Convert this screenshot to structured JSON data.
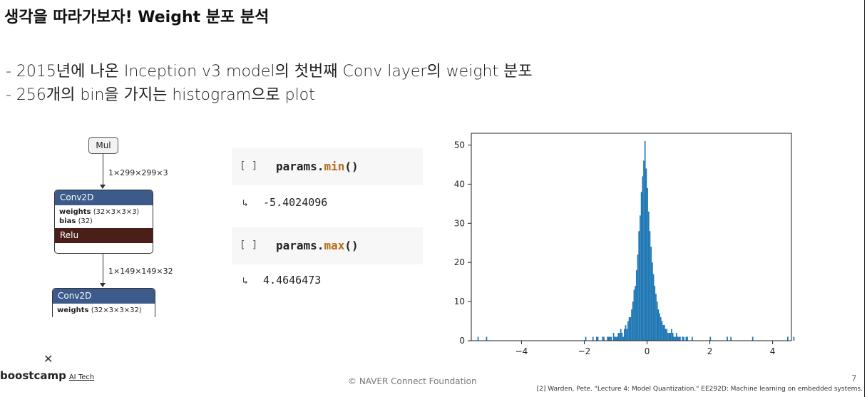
{
  "slide": {
    "title": "생각을 따라가보자! Weight 분포 분석",
    "bullets": [
      "- 2015년에 나온 Inception v3 model의 첫번째 Conv layer의 weight 분포",
      "- 256개의 bin을 가지는 histogram으로 plot"
    ]
  },
  "graph": {
    "mul_label": "Mul",
    "edge1_label": "1×299×299×3",
    "conv1_title": "Conv2D",
    "conv1_weights_key": "weights",
    "conv1_weights_val": "⟨32×3×3×3⟩",
    "conv1_bias_key": "bias",
    "conv1_bias_val": "⟨32⟩",
    "relu_label": "Relu",
    "edge2_label": "1×149×149×32",
    "conv2_title": "Conv2D",
    "conv2_weights_key": "weights",
    "conv2_weights_val": "⟨32×3×3×32⟩"
  },
  "notebook": {
    "cell_brackets": "[ ]",
    "cell1_obj": "params.",
    "cell1_fn": "min",
    "cell1_paren": "()",
    "out1_icon": "↳",
    "out1_value": "-5.4024096",
    "cell2_obj": "params.",
    "cell2_fn": "max",
    "cell2_paren": "()",
    "out2_icon": "↳",
    "out2_value": "4.4646473"
  },
  "chart_data": {
    "type": "bar",
    "title": "",
    "xlabel": "",
    "ylabel": "",
    "xlim": [
      -5.6,
      4.6
    ],
    "ylim": [
      0,
      53
    ],
    "xticks": [
      -4,
      -2,
      0,
      2,
      4
    ],
    "xtick_labels": [
      "−4",
      "−2",
      "0",
      "2",
      "4"
    ],
    "yticks": [
      0,
      10,
      20,
      30,
      40,
      50
    ],
    "ytick_labels": [
      "0",
      "10",
      "20",
      "30",
      "40",
      "50"
    ],
    "bar_color": "#1f77b4",
    "bins": 256,
    "bin_range": [
      -5.4024096,
      4.4646473
    ],
    "counts": [
      1,
      0,
      0,
      0,
      0,
      0,
      0,
      1,
      0,
      0,
      0,
      0,
      0,
      0,
      0,
      0,
      0,
      0,
      0,
      0,
      0,
      0,
      0,
      0,
      0,
      0,
      0,
      0,
      0,
      0,
      0,
      0,
      0,
      0,
      0,
      0,
      0,
      0,
      0,
      0,
      0,
      0,
      0,
      0,
      0,
      0,
      0,
      0,
      0,
      0,
      0,
      0,
      0,
      0,
      0,
      0,
      0,
      0,
      0,
      0,
      0,
      0,
      0,
      0,
      0,
      0,
      0,
      0,
      0,
      0,
      0,
      0,
      0,
      0,
      0,
      0,
      0,
      0,
      0,
      0,
      0,
      0,
      0,
      0,
      0,
      0,
      0,
      0,
      0,
      1,
      0,
      0,
      0,
      0,
      0,
      1,
      0,
      0,
      1,
      1,
      0,
      0,
      0,
      1,
      1,
      0,
      0,
      1,
      1,
      1,
      1,
      0,
      2,
      1,
      1,
      1,
      2,
      2,
      3,
      2,
      1,
      3,
      4,
      3,
      5,
      6,
      6,
      8,
      10,
      13,
      14,
      18,
      22,
      28,
      32,
      38,
      42,
      46,
      51,
      44,
      39,
      33,
      28,
      24,
      20,
      17,
      14,
      12,
      10,
      8,
      7,
      6,
      5,
      4,
      4,
      3,
      3,
      2,
      2,
      2,
      3,
      2,
      1,
      1,
      2,
      1,
      1,
      1,
      0,
      1,
      1,
      0,
      1,
      1,
      0,
      0,
      0,
      1,
      0,
      0,
      0,
      0,
      0,
      0,
      0,
      0,
      0,
      0,
      0,
      0,
      0,
      0,
      1,
      0,
      0,
      0,
      0,
      0,
      0,
      0,
      0,
      0,
      0,
      0,
      0,
      0,
      1,
      0,
      0,
      1,
      0,
      0,
      0,
      0,
      0,
      0,
      0,
      0,
      0,
      0,
      0,
      0,
      0,
      0,
      0,
      0,
      0,
      1,
      0,
      0,
      0,
      0,
      0,
      0,
      0,
      0,
      0,
      0,
      0,
      0,
      0,
      0,
      0,
      0,
      0,
      0,
      0,
      0,
      0,
      0,
      0,
      0,
      0,
      0,
      0,
      0,
      1,
      0,
      0,
      0,
      0,
      1
    ]
  },
  "footer": {
    "x_mark": "✕",
    "logo": "boostcamp",
    "logo_sub": "AI Tech",
    "center": "©  NAVER Connect Foundation",
    "page_number": "7",
    "citation": "[2] Warden, Pete. \"Lecture 4: Model Quantization.\" EE292D: Machine learning on embedded systems."
  }
}
